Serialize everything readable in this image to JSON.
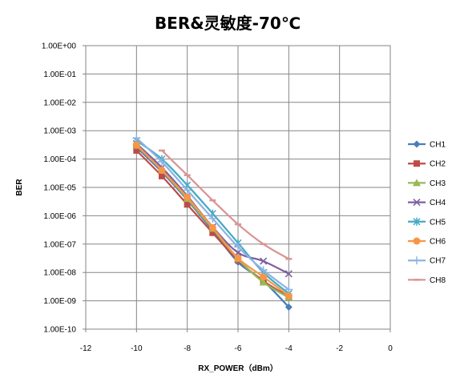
{
  "chart_data": {
    "type": "line",
    "title": "BER&灵敏度-70℃",
    "xlabel": "RX_POWER（dBm）",
    "ylabel": "BER",
    "xlim": [
      -12,
      0
    ],
    "x_ticks": [
      "-12",
      "-10",
      "-8",
      "-6",
      "-4",
      "-2",
      "0"
    ],
    "y_scale": "log",
    "ylim": [
      1e-10,
      1
    ],
    "y_ticks": [
      "1.00E+00",
      "1.00E-01",
      "1.00E-02",
      "1.00E-03",
      "1.00E-04",
      "1.00E-05",
      "1.00E-06",
      "1.00E-07",
      "1.00E-08",
      "1.00E-09",
      "1.00E-10"
    ],
    "grid": "major",
    "legend_position": "right",
    "series": [
      {
        "name": "CH1",
        "color": "#4a7ebb",
        "marker": "diamond",
        "points": [
          [
            -10,
            0.00026
          ],
          [
            -9,
            3.5e-05
          ],
          [
            -8,
            3.6e-06
          ],
          [
            -7,
            3e-07
          ],
          [
            -6,
            2.3e-08
          ],
          [
            -5,
            5e-09
          ],
          [
            -4,
            6e-10
          ]
        ]
      },
      {
        "name": "CH2",
        "color": "#be4b48",
        "marker": "square",
        "points": [
          [
            -10,
            0.0002
          ],
          [
            -9,
            2.5e-05
          ],
          [
            -8,
            2.5e-06
          ],
          [
            -7,
            2.5e-07
          ],
          [
            -6,
            2.7e-08
          ],
          [
            -5,
            5e-09
          ],
          [
            -4,
            1.4e-09
          ]
        ]
      },
      {
        "name": "CH3",
        "color": "#98b954",
        "marker": "triangle",
        "points": [
          [
            -10,
            0.0003
          ],
          [
            -9,
            4e-05
          ],
          [
            -8,
            4e-06
          ],
          [
            -7,
            3.5e-07
          ],
          [
            -6,
            3e-08
          ],
          [
            -5,
            4.5e-09
          ],
          [
            -4,
            1.3e-09
          ]
        ]
      },
      {
        "name": "CH4",
        "color": "#7d60a0",
        "marker": "x",
        "points": [
          [
            -10,
            0.00035
          ],
          [
            -9,
            5e-05
          ],
          [
            -8,
            5e-06
          ],
          [
            -7,
            4e-07
          ],
          [
            -6,
            5e-08
          ],
          [
            -5,
            2.5e-08
          ],
          [
            -4,
            9e-09
          ]
        ]
      },
      {
        "name": "CH5",
        "color": "#46aac5",
        "marker": "star",
        "points": [
          [
            -10,
            0.00045
          ],
          [
            -9,
            0.0001
          ],
          [
            -8,
            1.2e-05
          ],
          [
            -7,
            1.2e-06
          ],
          [
            -6,
            1.1e-07
          ],
          [
            -5,
            1e-08
          ],
          [
            -4,
            1.8e-09
          ]
        ]
      },
      {
        "name": "CH6",
        "color": "#f79646",
        "marker": "circle",
        "points": [
          [
            -10,
            0.00032
          ],
          [
            -9,
            4e-05
          ],
          [
            -8,
            4.5e-06
          ],
          [
            -7,
            3.8e-07
          ],
          [
            -6,
            3.2e-08
          ],
          [
            -5,
            7e-09
          ],
          [
            -4,
            1.5e-09
          ]
        ]
      },
      {
        "name": "CH7",
        "color": "#8db3e2",
        "marker": "plus",
        "points": [
          [
            -10,
            0.00055
          ],
          [
            -9,
            8e-05
          ],
          [
            -8,
            8e-06
          ],
          [
            -7,
            8e-07
          ],
          [
            -6,
            8e-08
          ],
          [
            -5,
            1.2e-08
          ],
          [
            -4,
            2.5e-09
          ]
        ]
      },
      {
        "name": "CH8",
        "color": "#d99594",
        "marker": "dash",
        "points": [
          [
            -9,
            0.0002
          ],
          [
            -8,
            2.7e-05
          ],
          [
            -7,
            3.5e-06
          ],
          [
            -6,
            5e-07
          ],
          [
            -5,
            1e-07
          ],
          [
            -4,
            3e-08
          ]
        ]
      }
    ]
  }
}
